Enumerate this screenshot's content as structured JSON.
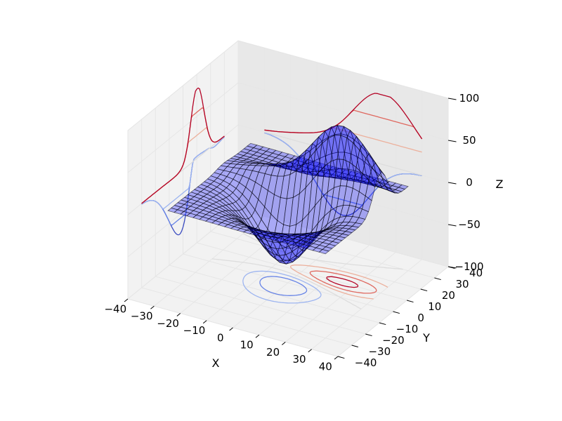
{
  "chart_data": {
    "type": "surface3d",
    "title": "",
    "xlabel": "X",
    "ylabel": "Y",
    "zlabel": "Z",
    "xlim": [
      -40,
      40
    ],
    "ylim": [
      -40,
      40
    ],
    "zlim": [
      -100,
      100
    ],
    "xticks": [
      -40,
      -30,
      -20,
      -10,
      0,
      10,
      20,
      30,
      40
    ],
    "yticks": [
      -40,
      -30,
      -20,
      -10,
      0,
      10,
      20,
      30,
      40
    ],
    "zticks": [
      -100,
      -50,
      0,
      50,
      100
    ],
    "x_tick_labels": [
      "−40",
      "−30",
      "−20",
      "−10",
      "0",
      "10",
      "20",
      "30",
      "40"
    ],
    "y_tick_labels": [
      "−40",
      "−30",
      "−20",
      "−10",
      "0",
      "10",
      "20",
      "30",
      "40"
    ],
    "z_tick_labels": [
      "−100",
      "−50",
      "0",
      "50",
      "100"
    ],
    "grid": true,
    "surface": {
      "x_range": [
        -30,
        30
      ],
      "y_range": [
        -30,
        30
      ],
      "grid_lines": 25,
      "function": "axes3d.get_test_data",
      "color": "#0000ff",
      "alpha": 0.3,
      "edge_color": "#000000"
    },
    "contour_projections": [
      {
        "plane": "z",
        "offset": -100
      },
      {
        "plane": "x",
        "offset": -40
      },
      {
        "plane": "y",
        "offset": 40
      }
    ],
    "colormap": "coolwarm",
    "contour_levels": [
      -75,
      -50,
      -25,
      0,
      25,
      50,
      75
    ]
  }
}
